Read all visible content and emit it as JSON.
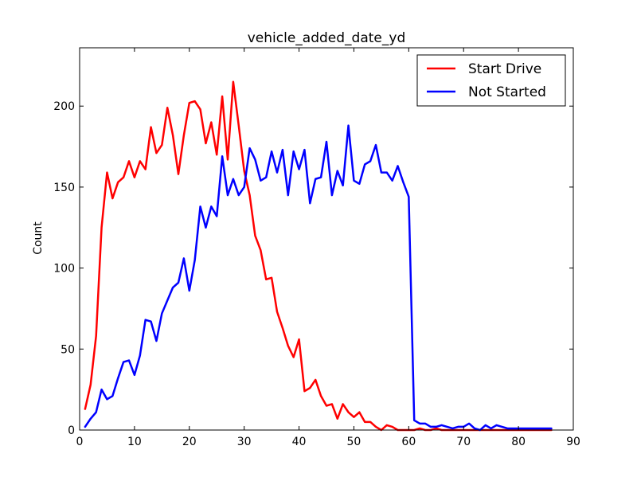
{
  "chart_data": {
    "type": "line",
    "title": "vehicle_added_date_yd",
    "xlabel": "",
    "ylabel": "Count",
    "xlim": [
      0,
      90
    ],
    "ylim": [
      0,
      236
    ],
    "xticks": [
      0,
      10,
      20,
      30,
      40,
      50,
      60,
      70,
      80,
      90
    ],
    "yticks": [
      0,
      50,
      100,
      150,
      200
    ],
    "grid": false,
    "legend_position": "top-right",
    "x": [
      1,
      2,
      3,
      4,
      5,
      6,
      7,
      8,
      9,
      10,
      11,
      12,
      13,
      14,
      15,
      16,
      17,
      18,
      19,
      20,
      21,
      22,
      23,
      24,
      25,
      26,
      27,
      28,
      29,
      30,
      31,
      32,
      33,
      34,
      35,
      36,
      37,
      38,
      39,
      40,
      41,
      42,
      43,
      44,
      45,
      46,
      47,
      48,
      49,
      50,
      51,
      52,
      53,
      54,
      55,
      56,
      57,
      58,
      59,
      60,
      61,
      62,
      63,
      64,
      65,
      66,
      67,
      68,
      69,
      70,
      71,
      72,
      73,
      74,
      75,
      76,
      77,
      78,
      79,
      80,
      81,
      82,
      83,
      84,
      85,
      86
    ],
    "series": [
      {
        "name": "Start Drive",
        "color": "#ff0000",
        "values": [
          13,
          28,
          58,
          125,
          159,
          143,
          153,
          156,
          166,
          156,
          166,
          161,
          187,
          171,
          176,
          199,
          182,
          158,
          182,
          202,
          203,
          198,
          177,
          190,
          170,
          206,
          167,
          215,
          188,
          160,
          145,
          120,
          111,
          93,
          94,
          73,
          63,
          52,
          45,
          56,
          24,
          26,
          31,
          21,
          15,
          16,
          7,
          16,
          11,
          8,
          11,
          5,
          5,
          2,
          0,
          3,
          2,
          0,
          0,
          0,
          0,
          1,
          0,
          0,
          1,
          0,
          0,
          0,
          0,
          0,
          0,
          0,
          0,
          0,
          0,
          0,
          0,
          0,
          0,
          0,
          0,
          0,
          0,
          0,
          0,
          0
        ]
      },
      {
        "name": "Not Started",
        "color": "#0000ff",
        "values": [
          2,
          7,
          11,
          25,
          19,
          21,
          32,
          42,
          43,
          34,
          46,
          68,
          67,
          55,
          72,
          80,
          88,
          91,
          106,
          86,
          105,
          138,
          125,
          138,
          132,
          169,
          145,
          155,
          145,
          150,
          174,
          167,
          154,
          156,
          172,
          159,
          173,
          145,
          172,
          161,
          173,
          140,
          155,
          156,
          178,
          145,
          160,
          151,
          188,
          154,
          152,
          164,
          166,
          176,
          159,
          159,
          154,
          163,
          153,
          144,
          6,
          4,
          4,
          2,
          2,
          3,
          2,
          1,
          2,
          2,
          4,
          1,
          0,
          3,
          1,
          3,
          2,
          1,
          1,
          1,
          1,
          1,
          1,
          1,
          1,
          1
        ]
      }
    ]
  }
}
